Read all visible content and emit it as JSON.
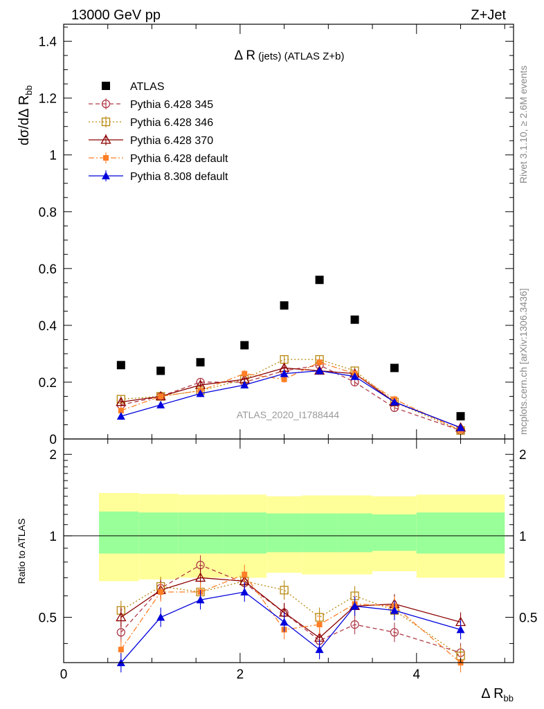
{
  "header": {
    "left": "13000 GeV pp",
    "right": "Z+Jet"
  },
  "side_labels": {
    "rivet": "Rivet 3.1.10, ≥ 2.6M events",
    "mcplots": "mcplots.cern.ch [arXiv:1306.3436]"
  },
  "colors": {
    "atlas": "#000000",
    "p345": "#b03a48",
    "p346": "#b8860b",
    "p370": "#8b0000",
    "p6def": "#ff7f27",
    "p8def": "#0000dd",
    "band_inner": "#99ff99",
    "band_outer": "#ffff99"
  },
  "chart_data": {
    "type": "scatter",
    "title": "Δ R (jets) (ATLAS Z+b)",
    "title_main": "Δ R",
    "title_sub": "(jets) (ATLAS Z+b)",
    "analysis_label": "ATLAS_2020_I1788444",
    "xlabel_main": "Δ R",
    "xlabel_sub": "bb",
    "ylabel_main": "dσ/dΔ R",
    "ylabel_sub": "bb",
    "ratio_ylabel": "Ratio to ATLAS",
    "xlim": [
      0,
      5.1
    ],
    "ylim": [
      0,
      1.46
    ],
    "ratio_ylim": [
      0.34,
      2.28
    ],
    "x_ticks": [
      "0",
      "2",
      "4"
    ],
    "y_ticks": [
      "0",
      "0.2",
      "0.4",
      "0.6",
      "0.8",
      "1",
      "1.2",
      "1.4"
    ],
    "ratio_ticks": [
      "0.5",
      "1",
      "2"
    ],
    "x": [
      0.65,
      1.1,
      1.55,
      2.05,
      2.5,
      2.9,
      3.3,
      3.75,
      4.5
    ],
    "bin_edges": [
      0.4,
      0.85,
      1.3,
      1.8,
      2.3,
      2.7,
      3.1,
      3.5,
      4.0,
      5.0
    ],
    "legend_position": "top-left",
    "series": [
      {
        "name": "ATLAS",
        "key": "atlas",
        "marker": "square-filled",
        "line": "none",
        "values": [
          0.26,
          0.24,
          0.27,
          0.33,
          0.47,
          0.56,
          0.42,
          0.25,
          0.08
        ],
        "ratio": [
          1,
          1,
          1,
          1,
          1,
          1,
          1,
          1,
          1
        ]
      },
      {
        "name": "Pythia 6.428 345",
        "key": "p345",
        "marker": "circle-open",
        "line": "dashed",
        "values": [
          0.12,
          0.15,
          0.2,
          0.2,
          0.24,
          0.26,
          0.2,
          0.11,
          0.03
        ],
        "ratio": [
          0.44,
          0.64,
          0.78,
          0.67,
          0.52,
          0.41,
          0.47,
          0.44,
          0.37
        ]
      },
      {
        "name": "Pythia 6.428 346",
        "key": "p346",
        "marker": "square-open",
        "line": "dotted",
        "values": [
          0.14,
          0.15,
          0.17,
          0.21,
          0.28,
          0.28,
          0.24,
          0.13,
          0.03
        ],
        "ratio": [
          0.53,
          0.65,
          0.62,
          0.68,
          0.63,
          0.5,
          0.6,
          0.53,
          0.36
        ]
      },
      {
        "name": "Pythia 6.428 370",
        "key": "p370",
        "marker": "triangle-open",
        "line": "solid",
        "values": [
          0.13,
          0.15,
          0.19,
          0.21,
          0.25,
          0.24,
          0.23,
          0.13,
          0.04
        ],
        "ratio": [
          0.5,
          0.63,
          0.7,
          0.68,
          0.52,
          0.42,
          0.55,
          0.56,
          0.48
        ]
      },
      {
        "name": "Pythia 6.428 default",
        "key": "p6def",
        "marker": "square-filled-small",
        "line": "dashdot",
        "values": [
          0.1,
          0.15,
          0.17,
          0.23,
          0.21,
          0.27,
          0.23,
          0.14,
          0.03
        ],
        "ratio": [
          0.38,
          0.62,
          0.62,
          0.72,
          0.45,
          0.47,
          0.56,
          0.55,
          0.32
        ]
      },
      {
        "name": "Pythia 8.308 default",
        "key": "p8def",
        "marker": "triangle-filled",
        "line": "solid",
        "values": [
          0.08,
          0.12,
          0.16,
          0.19,
          0.23,
          0.24,
          0.22,
          0.13,
          0.04
        ],
        "ratio": [
          0.3,
          0.5,
          0.58,
          0.62,
          0.48,
          0.38,
          0.55,
          0.53,
          0.45
        ]
      }
    ],
    "uncertainty_bands": {
      "inner": {
        "lo": [
          0.86,
          0.86,
          0.86,
          0.86,
          0.87,
          0.87,
          0.87,
          0.88,
          0.86
        ],
        "hi": [
          1.23,
          1.22,
          1.22,
          1.22,
          1.21,
          1.21,
          1.21,
          1.2,
          1.22
        ]
      },
      "outer": {
        "lo": [
          0.68,
          0.69,
          0.7,
          0.7,
          0.73,
          0.72,
          0.72,
          0.74,
          0.7
        ],
        "hi": [
          1.44,
          1.43,
          1.42,
          1.42,
          1.4,
          1.41,
          1.41,
          1.4,
          1.42
        ]
      }
    }
  }
}
